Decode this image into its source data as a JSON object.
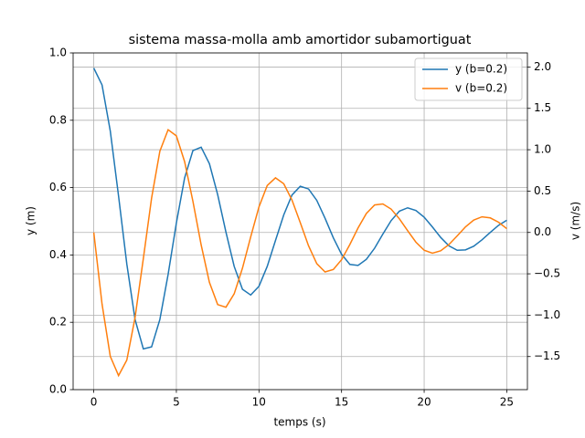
{
  "chart_data": {
    "type": "line",
    "title": "sistema massa-molla amb amortidor subamortiguat",
    "x_label": "temps (s)",
    "y_label": "y (m)",
    "y2_label": "v (m/s)",
    "x": [
      0,
      0.5,
      1,
      1.5,
      2,
      2.5,
      3,
      3.5,
      4,
      4.5,
      5,
      5.5,
      6,
      6.5,
      7,
      7.5,
      8,
      8.5,
      9,
      9.5,
      10,
      10.5,
      11,
      11.5,
      12,
      12.5,
      13,
      13.5,
      14,
      14.5,
      15,
      15.5,
      16,
      16.5,
      17,
      17.5,
      18,
      18.5,
      19,
      19.5,
      20,
      20.5,
      21,
      21.5,
      22,
      22.5,
      23,
      23.5,
      24,
      24.5,
      25
    ],
    "series": [
      {
        "name": "y (b=0.2)",
        "color": "#1f77b4",
        "axis": "y",
        "values": [
          0.955,
          0.905,
          0.768,
          0.575,
          0.373,
          0.208,
          0.121,
          0.127,
          0.208,
          0.342,
          0.495,
          0.629,
          0.71,
          0.72,
          0.671,
          0.579,
          0.468,
          0.366,
          0.298,
          0.281,
          0.307,
          0.366,
          0.443,
          0.519,
          0.578,
          0.604,
          0.596,
          0.562,
          0.509,
          0.451,
          0.402,
          0.372,
          0.369,
          0.387,
          0.42,
          0.462,
          0.502,
          0.53,
          0.54,
          0.532,
          0.512,
          0.483,
          0.452,
          0.427,
          0.414,
          0.415,
          0.426,
          0.445,
          0.467,
          0.488,
          0.503
        ]
      },
      {
        "name": "v (b=0.2)",
        "color": "#ff7f0e",
        "axis": "y2",
        "values": [
          0.0,
          -0.865,
          -1.498,
          -1.73,
          -1.543,
          -1.027,
          -0.316,
          0.416,
          0.982,
          1.242,
          1.168,
          0.855,
          0.378,
          -0.15,
          -0.603,
          -0.872,
          -0.904,
          -0.741,
          -0.432,
          -0.053,
          0.309,
          0.567,
          0.66,
          0.588,
          0.391,
          0.119,
          -0.161,
          -0.377,
          -0.477,
          -0.448,
          -0.329,
          -0.146,
          0.055,
          0.229,
          0.332,
          0.344,
          0.282,
          0.165,
          0.021,
          -0.117,
          -0.215,
          -0.25,
          -0.222,
          -0.146,
          -0.041,
          0.067,
          0.15,
          0.189,
          0.176,
          0.124,
          0.046
        ]
      }
    ],
    "xlim": [
      -1.25,
      26.25
    ],
    "xticks": [
      0,
      5,
      10,
      15,
      20,
      25
    ],
    "ylim": [
      0,
      1
    ],
    "yticks": [
      {
        "value": 0,
        "label": "0.0"
      },
      {
        "value": 0.2,
        "label": "0.2"
      },
      {
        "value": 0.4,
        "label": "0.4"
      },
      {
        "value": 0.6,
        "label": "0.6"
      },
      {
        "value": 0.8,
        "label": "0.8"
      },
      {
        "value": 1,
        "label": "1.0"
      }
    ],
    "y2lim": [
      -1.9,
      2.17
    ],
    "y2ticks": [
      {
        "value": -1.5,
        "label": "−1.5"
      },
      {
        "value": -1,
        "label": "−1.0"
      },
      {
        "value": -0.5,
        "label": "−0.5"
      },
      {
        "value": 0,
        "label": "0.0"
      },
      {
        "value": 0.5,
        "label": "0.5"
      },
      {
        "value": 1,
        "label": "1.0"
      },
      {
        "value": 1.5,
        "label": "1.5"
      },
      {
        "value": 2,
        "label": "2.0"
      }
    ],
    "grid": true,
    "legend": "upper right"
  }
}
